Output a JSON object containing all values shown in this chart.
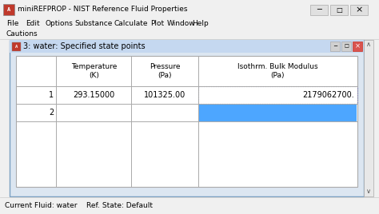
{
  "title_bar_text": "miniREFPROP - NIST Reference Fluid Properties",
  "menu_items": [
    "File",
    "Edit",
    "Options",
    "Substance",
    "Calculate",
    "Plot",
    "Window",
    "Help"
  ],
  "cautions_text": "Cautions",
  "inner_title": "3: water: Specified state points",
  "row1_label": "1",
  "row2_label": "2",
  "row1_data": [
    "293.15000",
    "101325.00",
    "2179062700."
  ],
  "status_bar": "Current Fluid: water    Ref. State: Default",
  "bg_color": "#f0f0f0",
  "inner_panel_bg": "#dce6f1",
  "highlight_blue": "#4da6ff",
  "inner_panel_title_bg": "#c5d8f0",
  "close_btn_color": "#d9534f"
}
